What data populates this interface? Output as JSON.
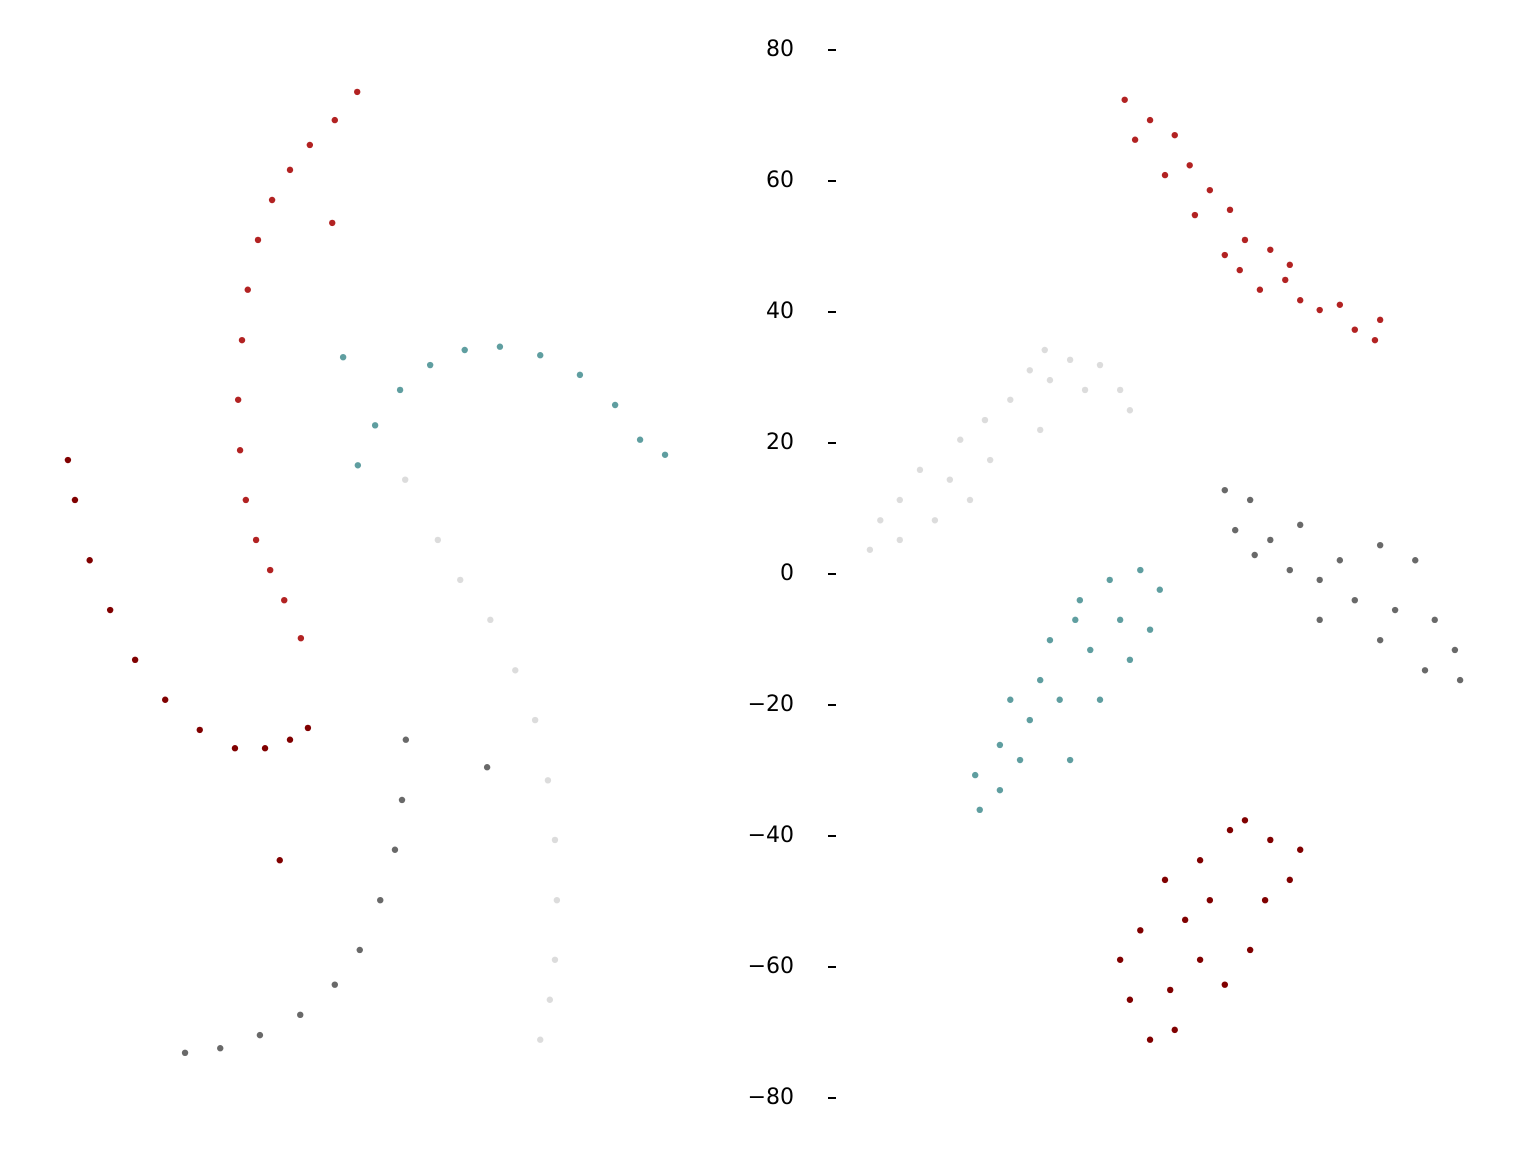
{
  "chart_data": [
    {
      "type": "scatter",
      "xlim": [
        -50,
        50
      ],
      "ylim": [
        -80,
        80
      ],
      "series": [
        {
          "color": "#b22222",
          "x": [
            -2.0,
            -5.5,
            -9.4,
            -12.5,
            -15.3,
            -17.5,
            -19.1,
            -20.0,
            -20.6,
            -20.3,
            -19.4,
            -17.8,
            -15.6,
            -13.4,
            -10.8,
            -5.9
          ],
          "y": [
            73.6,
            69.3,
            65.5,
            61.7,
            57.1,
            51.0,
            43.4,
            35.7,
            26.6,
            18.9,
            11.3,
            5.2,
            0.6,
            -4.0,
            -9.8,
            53.6
          ]
        },
        {
          "color": "#800000",
          "x": [
            -47.2,
            -46.1,
            -43.8,
            -40.6,
            -36.7,
            -32.0,
            -26.6,
            -21.1,
            -16.4,
            -12.5,
            -9.7,
            -14.1
          ],
          "y": [
            17.4,
            11.3,
            2.1,
            -5.5,
            -13.1,
            -19.2,
            -23.8,
            -26.6,
            -26.6,
            -25.3,
            -23.5,
            -43.7
          ]
        },
        {
          "color": "#5f9ea0",
          "x": [
            -1.9,
            0.8,
            4.7,
            9.4,
            14.8,
            20.3,
            26.6,
            32.8,
            38.3,
            42.2,
            46.1,
            -4.2
          ],
          "y": [
            16.6,
            22.7,
            28.1,
            31.9,
            34.2,
            34.7,
            33.4,
            30.4,
            25.8,
            20.5,
            18.2,
            33.1
          ]
        },
        {
          "color": "#dcdcdc",
          "x": [
            10.6,
            14.1,
            18.8,
            22.7,
            25.8,
            27.8,
            28.9,
            29.2,
            28.9,
            28.1,
            26.6,
            5.5
          ],
          "y": [
            5.2,
            -0.9,
            -7.0,
            -14.7,
            -22.3,
            -31.5,
            -40.6,
            -49.8,
            -58.9,
            -65.0,
            -71.1,
            14.4
          ]
        },
        {
          "color": "#696969",
          "x": [
            -28.9,
            -23.4,
            -17.2,
            -10.9,
            -5.5,
            -1.6,
            1.6,
            3.9,
            5.0,
            5.6,
            18.3
          ],
          "y": [
            -73.1,
            -72.4,
            -70.4,
            -67.3,
            -62.7,
            -57.4,
            -49.8,
            -42.1,
            -34.5,
            -25.3,
            -29.5
          ]
        }
      ]
    },
    {
      "type": "scatter",
      "xlim": [
        -50,
        50
      ],
      "ylim": [
        -80,
        80
      ],
      "yticks": [
        {
          "value": -80,
          "label": "−80"
        },
        {
          "value": -60,
          "label": "−60"
        },
        {
          "value": -40,
          "label": "−40"
        },
        {
          "value": -20,
          "label": "−20"
        },
        0,
        20,
        40,
        60,
        80
      ],
      "series": [
        {
          "color": "#b22222",
          "x": [
            -6.2,
            -2.3,
            -4.6,
            1.5,
            3.8,
            0,
            6.9,
            4.6,
            10,
            12.3,
            9.2,
            16.2,
            18.5,
            14.6,
            20.8,
            23.8,
            26.9,
            29.2,
            32.3,
            33.1,
            19.2,
            11.5
          ],
          "y": [
            72.4,
            69.3,
            66.3,
            67.0,
            62.4,
            60.9,
            58.6,
            54.8,
            55.6,
            51.0,
            48.7,
            49.5,
            44.9,
            43.4,
            41.8,
            40.3,
            41.1,
            37.3,
            35.7,
            38.8,
            47.2,
            46.4
          ]
        },
        {
          "color": "#dcdcdc",
          "x": [
            -45.4,
            -43.8,
            -40.8,
            -37.7,
            -40.8,
            -35.4,
            -33.1,
            -31.5,
            -27.7,
            -26.9,
            -23.8,
            -20.8,
            -17.7,
            -18.5,
            -14.6,
            -12.3,
            -10,
            -6.9,
            -5.4,
            -19.2,
            -30.0
          ],
          "y": [
            3.7,
            8.2,
            11.3,
            15.9,
            5.2,
            8.2,
            14.4,
            20.5,
            23.5,
            17.4,
            26.6,
            31.1,
            29.6,
            34.2,
            32.7,
            28.1,
            31.9,
            28.1,
            25.0,
            22.0,
            11.3
          ]
        },
        {
          "color": "#696969",
          "x": [
            9.2,
            13.1,
            10.8,
            16.2,
            20.8,
            19.2,
            23.8,
            26.9,
            33.1,
            38.5,
            29.2,
            35.4,
            41.5,
            44.6,
            40,
            33.1,
            45.4,
            23.8,
            13.8
          ],
          "y": [
            12.8,
            11.3,
            6.7,
            5.2,
            7.5,
            0.6,
            -0.9,
            2.1,
            4.4,
            2.1,
            -4.0,
            -5.5,
            -7.0,
            -11.6,
            -14.7,
            -10.1,
            -16.2,
            -7.0,
            2.9
          ]
        },
        {
          "color": "#5f9ea0",
          "x": [
            -28.5,
            -29.2,
            -25.4,
            -25.4,
            -22.3,
            -20.8,
            -23.8,
            -19.2,
            -16.2,
            -17.7,
            -13.8,
            -11.5,
            -13.1,
            -8.5,
            -6.9,
            -3.8,
            -0.8,
            -5.4,
            -10.0,
            -14.6,
            -2.3
          ],
          "y": [
            -36.0,
            -30.7,
            -33.0,
            -26.1,
            -28.4,
            -22.3,
            -19.2,
            -16.2,
            -19.2,
            -10.1,
            -7.0,
            -11.6,
            -4.0,
            -0.9,
            -7.0,
            0.6,
            -2.4,
            -13.1,
            -19.2,
            -28.4,
            -8.5
          ]
        },
        {
          "color": "#800000",
          "x": [
            -6.9,
            -5.4,
            -2.3,
            1.5,
            -3.8,
            0,
            3.1,
            5.4,
            10,
            12.3,
            16.2,
            20.8,
            19.2,
            15.4,
            13.1,
            9.2,
            5.4,
            0.8,
            6.9
          ],
          "y": [
            -58.9,
            -65.0,
            -71.1,
            -69.6,
            -54.4,
            -46.7,
            -52.8,
            -43.7,
            -39.1,
            -37.6,
            -40.6,
            -42.1,
            -46.7,
            -49.8,
            -57.4,
            -62.7,
            -58.9,
            -63.5,
            -49.8
          ]
        }
      ]
    }
  ]
}
